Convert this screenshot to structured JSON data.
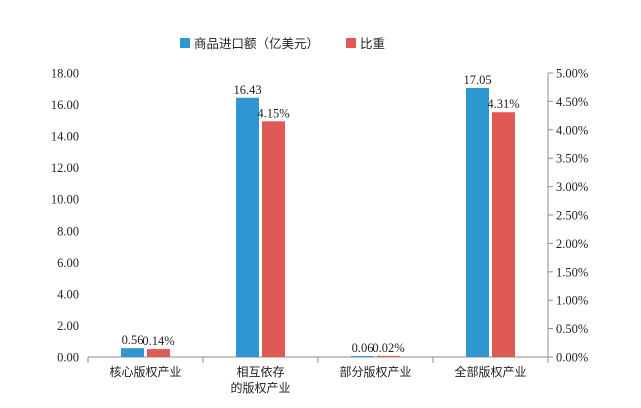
{
  "chart_data": {
    "type": "bar",
    "categories": [
      [
        "核心版权产业"
      ],
      [
        "相互依存",
        "的版权产业"
      ],
      [
        "部分版权产业"
      ],
      [
        "全部版权产业"
      ]
    ],
    "series": [
      {
        "name": "商品进口额（亿美元）",
        "axis": "left",
        "color": "#2e96d1",
        "values": [
          0.56,
          16.43,
          0.06,
          17.05
        ],
        "labels": [
          "0.56",
          "16.43",
          "0.06",
          "17.05"
        ]
      },
      {
        "name": "比重",
        "axis": "right",
        "color": "#e05a55",
        "values": [
          0.14,
          4.15,
          0.02,
          4.31
        ],
        "labels": [
          "0.14%",
          "4.15%",
          "0.02%",
          "4.31%"
        ]
      }
    ],
    "y_left": {
      "lim": [
        0,
        18
      ],
      "ticks": [
        "0.00",
        "2.00",
        "4.00",
        "6.00",
        "8.00",
        "10.00",
        "12.00",
        "14.00",
        "16.00",
        "18.00"
      ]
    },
    "y_right": {
      "lim": [
        0,
        5
      ],
      "unit": "%",
      "ticks": [
        "0.00%",
        "0.50%",
        "1.00%",
        "1.50%",
        "2.00%",
        "2.50%",
        "3.00%",
        "3.50%",
        "4.00%",
        "4.50%",
        "5.00%"
      ]
    },
    "legend_position": "top",
    "grid": false
  }
}
